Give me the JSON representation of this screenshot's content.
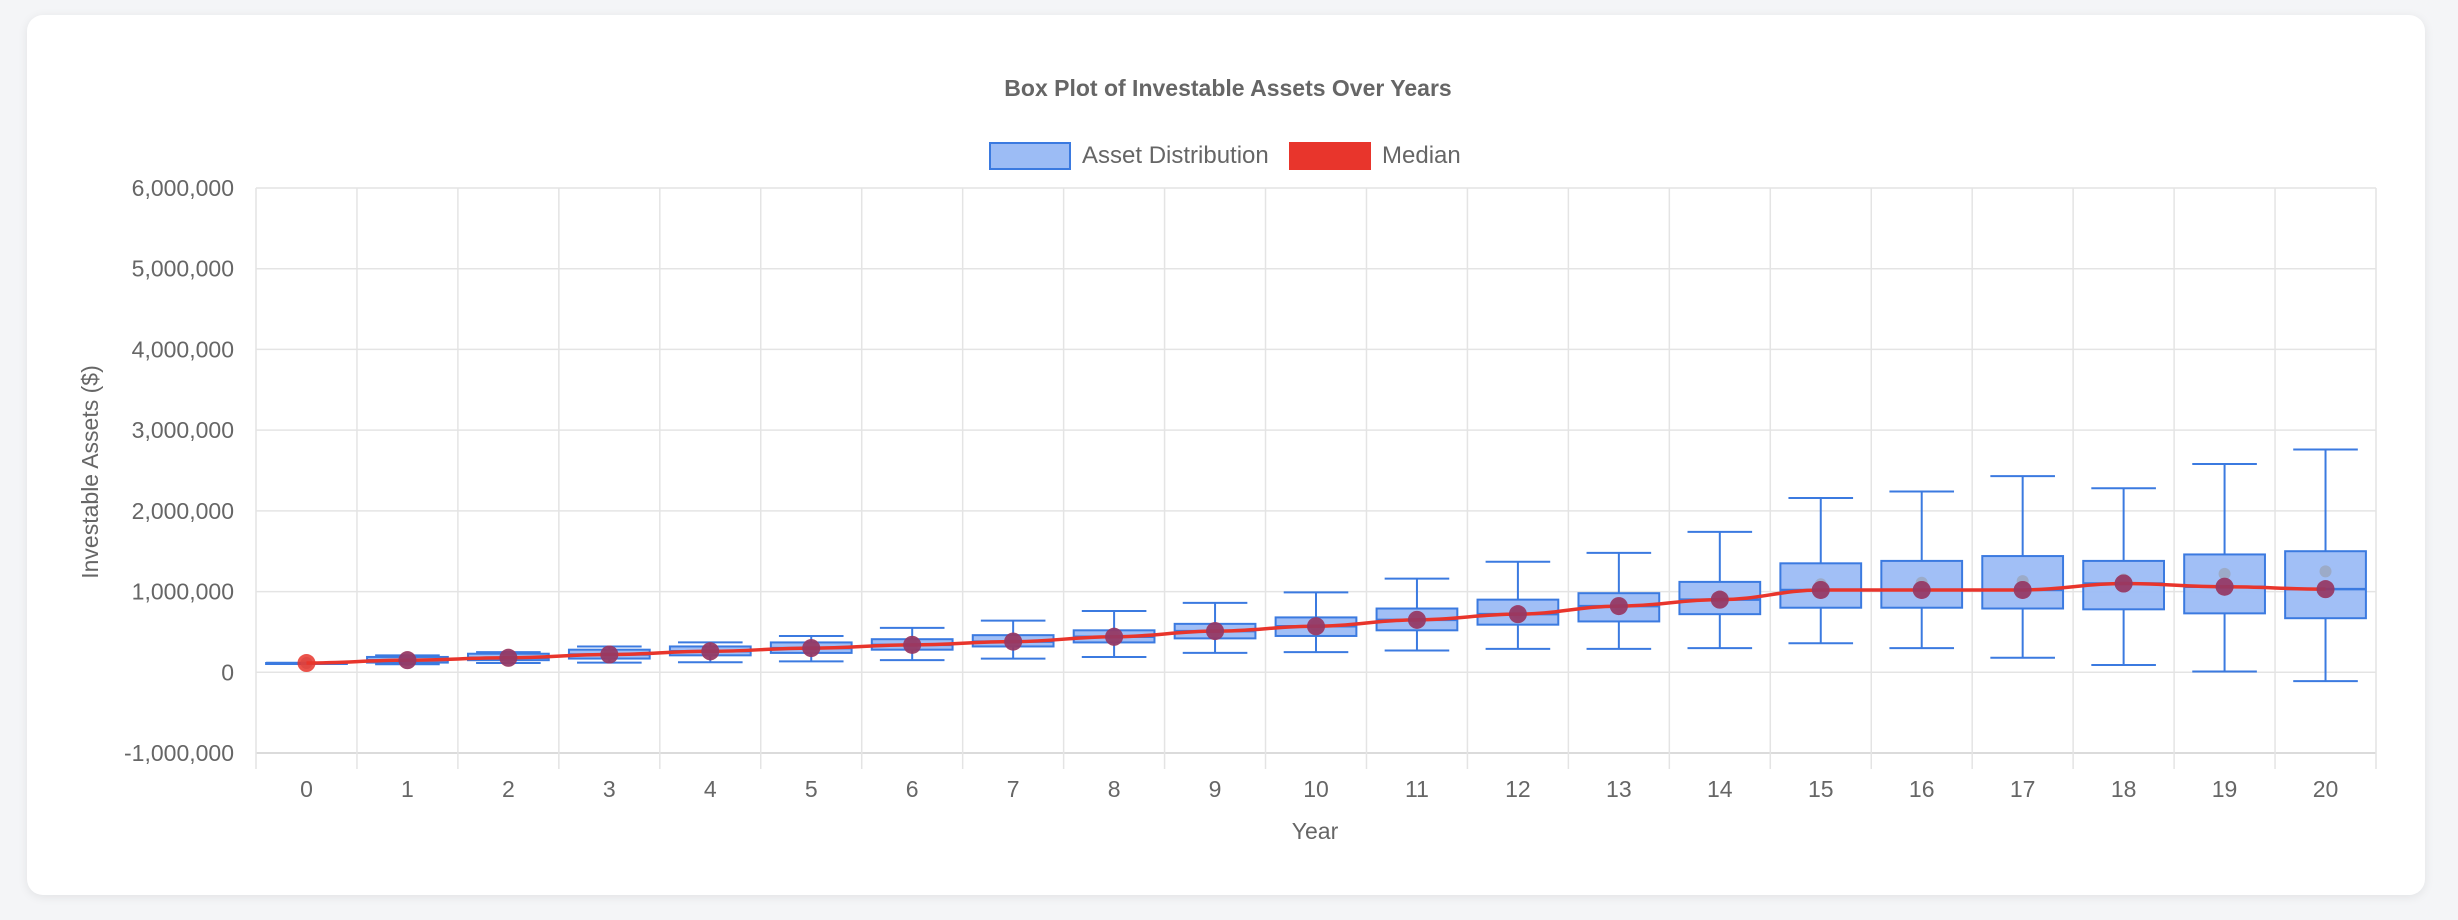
{
  "chart_data": {
    "type": "boxplot",
    "title": "Box Plot of Investable Assets Over Years",
    "xlabel": "Year",
    "ylabel": "Investable Assets ($)",
    "ylim": [
      -1000000,
      6000000
    ],
    "y_ticks": [
      6000000,
      5000000,
      4000000,
      3000000,
      2000000,
      1000000,
      0,
      -1000000
    ],
    "y_tick_labels": [
      "6,000,000",
      "5,000,000",
      "4,000,000",
      "3,000,000",
      "2,000,000",
      "1,000,000",
      "0",
      "-1,000,000"
    ],
    "grid": true,
    "legend_position": "top",
    "legend": [
      {
        "label": "Asset Distribution",
        "color": "#9cbcf5",
        "border": "#3b7ae0"
      },
      {
        "label": "Median",
        "color": "#e8352c",
        "border": "#e8352c"
      }
    ],
    "categories": [
      "0",
      "1",
      "2",
      "3",
      "4",
      "5",
      "6",
      "7",
      "8",
      "9",
      "10",
      "11",
      "12",
      "13",
      "14",
      "15",
      "16",
      "17",
      "18",
      "19",
      "20"
    ],
    "series": [
      {
        "name": "Asset Distribution",
        "type": "box",
        "min": [
          115000,
          100000,
          115000,
          120000,
          125000,
          135000,
          150000,
          170000,
          190000,
          240000,
          250000,
          270000,
          290000,
          290000,
          300000,
          360000,
          300000,
          180000,
          90000,
          10000,
          -110000
        ],
        "q1": [
          115000,
          120000,
          150000,
          170000,
          210000,
          240000,
          280000,
          320000,
          370000,
          420000,
          450000,
          520000,
          590000,
          630000,
          720000,
          800000,
          800000,
          790000,
          780000,
          730000,
          670000
        ],
        "median": [
          115000,
          150000,
          180000,
          220000,
          260000,
          300000,
          340000,
          380000,
          440000,
          510000,
          570000,
          650000,
          720000,
          820000,
          900000,
          1020000,
          1020000,
          1020000,
          1100000,
          1060000,
          1030000
        ],
        "q3": [
          115000,
          190000,
          230000,
          280000,
          320000,
          370000,
          410000,
          460000,
          520000,
          600000,
          680000,
          790000,
          900000,
          980000,
          1120000,
          1350000,
          1380000,
          1440000,
          1380000,
          1460000,
          1500000
        ],
        "max": [
          115000,
          210000,
          250000,
          320000,
          370000,
          450000,
          550000,
          640000,
          760000,
          860000,
          990000,
          1160000,
          1370000,
          1480000,
          1740000,
          2160000,
          2240000,
          2430000,
          2280000,
          2580000,
          2760000
        ],
        "mean": [
          115000,
          150000,
          180000,
          220000,
          260000,
          300000,
          340000,
          380000,
          440000,
          510000,
          580000,
          660000,
          740000,
          840000,
          930000,
          1090000,
          1110000,
          1130000,
          1150000,
          1220000,
          1250000
        ],
        "color": "#9cbcf5",
        "border": "#3b7ae0"
      },
      {
        "name": "Median",
        "type": "line",
        "values": [
          115000,
          150000,
          180000,
          220000,
          260000,
          300000,
          340000,
          380000,
          440000,
          510000,
          570000,
          650000,
          720000,
          820000,
          900000,
          1020000,
          1020000,
          1020000,
          1100000,
          1060000,
          1030000
        ],
        "color": "#e8352c"
      }
    ]
  }
}
